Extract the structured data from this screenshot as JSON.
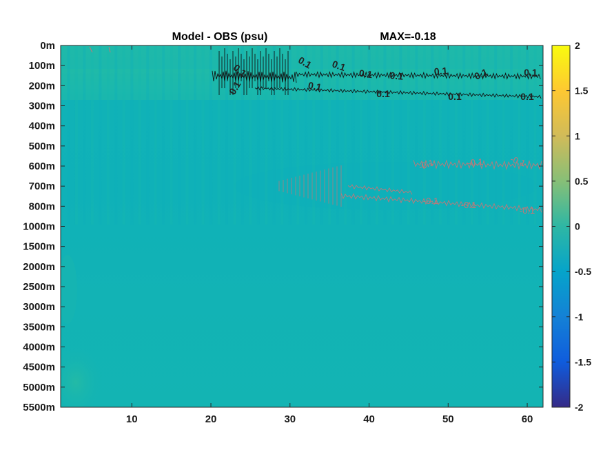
{
  "chart_data": {
    "type": "heatmap",
    "title": "Model - OBS (psu)",
    "subtitle": "MAX=-0.18",
    "x_ticks": [
      10,
      20,
      30,
      40,
      50,
      60
    ],
    "xlim": [
      1,
      62
    ],
    "y_tick_labels": [
      "0m",
      "100m",
      "200m",
      "300m",
      "400m",
      "500m",
      "600m",
      "700m",
      "800m",
      "1000m",
      "1500m",
      "2000m",
      "2500m",
      "3000m",
      "3500m",
      "4000m",
      "4500m",
      "5000m",
      "5500m"
    ],
    "colorbar": {
      "ticks": [
        2,
        1.5,
        1,
        0.5,
        0,
        -0.5,
        -1,
        -1.5,
        -2
      ],
      "range": [
        -2,
        2
      ],
      "colormap": "parula"
    },
    "contour_labels": {
      "positive": "0.1",
      "negative": "-0.1"
    },
    "colors": {
      "background_field": "#12b3b5",
      "upper_band": "#1fb9a9",
      "positive_contour": "#111111",
      "negative_contour": "#c07878"
    }
  }
}
